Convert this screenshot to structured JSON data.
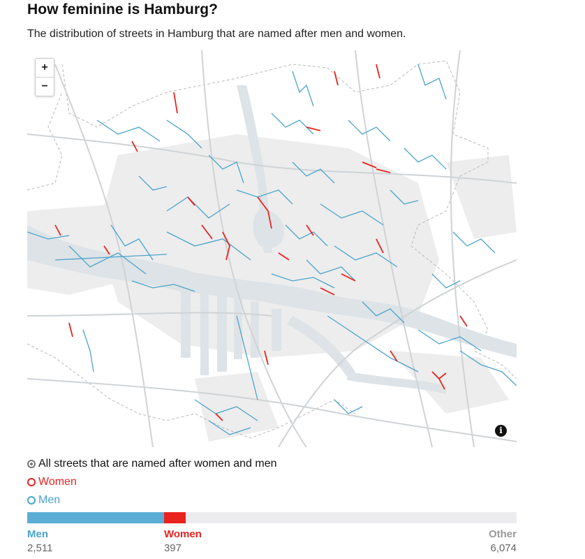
{
  "title": "How feminine is Hamburg?",
  "subtitle": "The distribution of streets in Hamburg that are named after men and women.",
  "map": {
    "zoom_in_label": "+",
    "zoom_out_label": "−",
    "info_label": "i"
  },
  "filter": {
    "selected": "all",
    "options": [
      {
        "id": "all",
        "label": "All streets that are named after women and men",
        "color": "#777777"
      },
      {
        "id": "women",
        "label": "Women",
        "color": "#e8231f"
      },
      {
        "id": "men",
        "label": "Men",
        "color": "#4ba3cc"
      }
    ]
  },
  "distribution": {
    "categories": [
      {
        "name": "Men",
        "value": 2511,
        "display": "2,511",
        "color": "#5badd6"
      },
      {
        "name": "Women",
        "value": 397,
        "display": "397",
        "color": "#e8231f"
      },
      {
        "name": "Other",
        "value": 6074,
        "display": "6,074",
        "color": "#ececef"
      }
    ]
  },
  "colors": {
    "men": "#4ba3cc",
    "women": "#e8231f",
    "water": "#dde3e6",
    "roads": "#cfd3d6",
    "urban": "#ededed",
    "boundary": "#b8b8b8"
  }
}
